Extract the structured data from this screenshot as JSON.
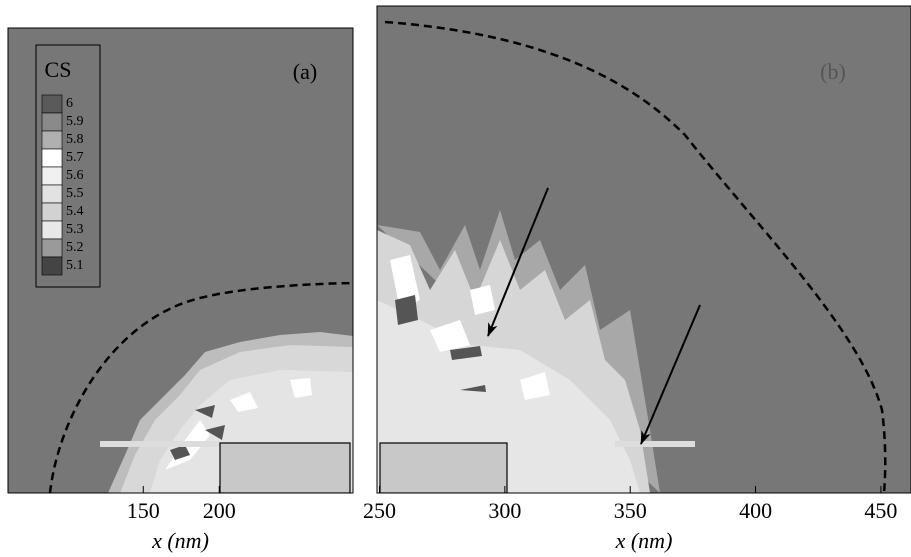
{
  "chart_data": [
    {
      "type": "contour",
      "label": "(a)",
      "xlabel": "x (nm)",
      "xlim": [
        61,
        288
      ],
      "xticks": [
        150,
        200
      ],
      "legend": {
        "title": "CS",
        "levels": [
          6,
          5.9,
          5.8,
          5.7,
          5.6,
          5.5,
          5.4,
          5.3,
          5.2,
          5.1
        ],
        "colors": [
          "#5a5a5a",
          "#8a8a8a",
          "#b0b0b0",
          "#ffffff",
          "#f0f0f0",
          "#e2e2e2",
          "#d2d2d2",
          "#e8e8e8",
          "#9a9a9a",
          "#444444"
        ]
      }
    },
    {
      "type": "contour",
      "label": "(b)",
      "xlabel": "x (nm)",
      "xlim": [
        249,
        462
      ],
      "xticks": [
        250,
        300,
        350,
        400,
        450
      ]
    }
  ]
}
